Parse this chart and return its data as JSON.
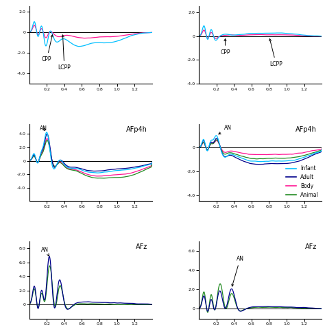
{
  "colors": {
    "infant": "#00BFFF",
    "adult": "#00008B",
    "body": "#FF1493",
    "animal": "#228B22"
  },
  "legend_labels": [
    "Infant",
    "Adult",
    "Body",
    "Animal"
  ],
  "figsize": [
    4.74,
    4.74
  ],
  "dpi": 100
}
